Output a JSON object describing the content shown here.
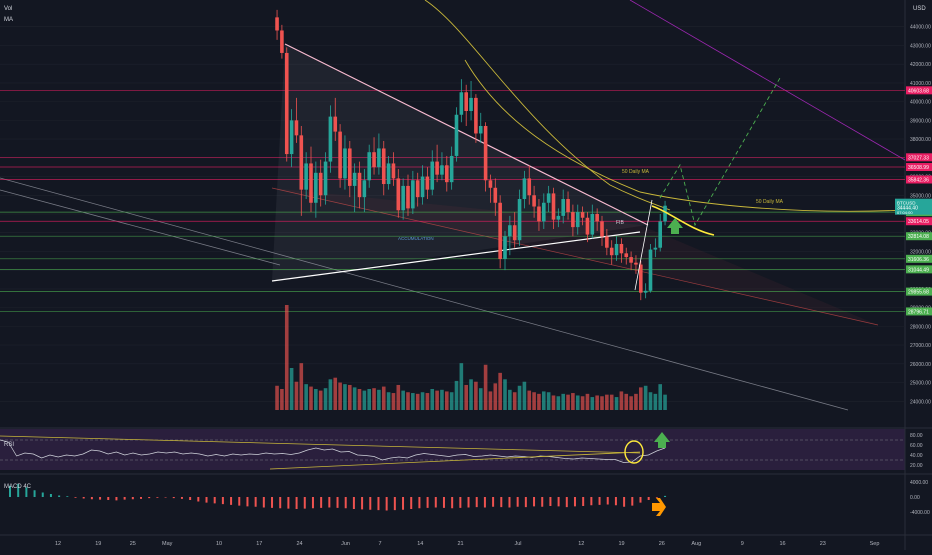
{
  "header": {
    "vol_label": "Vol",
    "ma_label": "MA",
    "currency": "USD"
  },
  "panels": {
    "rsi_label": "RSI",
    "macd_label": "MACD 4C"
  },
  "annotations": {
    "ma50_label": "50 Daily MA",
    "fib_label": "FIB",
    "accumulation_label": "ACCUMULATION"
  },
  "colors": {
    "background": "#131722",
    "bull": "#26a69a",
    "bear": "#ef5350",
    "support_line": "#4caf50",
    "resistance_line": "#e91e63",
    "ma_line": "#c8b73a",
    "rsi_line": "#d1d4dc",
    "rsi_band": "#2a1f3d",
    "green_arrow": "#4caf50",
    "orange_arrow": "#ff9800",
    "yellow_mark": "#ffeb3b"
  },
  "chart_data": {
    "type": "candlestick",
    "symbol": "BTCUSD",
    "ylim": [
      23000,
      45000
    ],
    "y_ticks": [
      24000,
      25000,
      26000,
      27000,
      28000,
      29000,
      30000,
      31000,
      32000,
      33000,
      34000,
      35000,
      36000,
      37000,
      38000,
      39000,
      40000,
      41000,
      42000,
      43000,
      44000
    ],
    "x_ticks": [
      {
        "label": "12",
        "day": 0
      },
      {
        "label": "19",
        "day": 7
      },
      {
        "label": "25",
        "day": 13
      },
      {
        "label": "May",
        "day": 19
      },
      {
        "label": "10",
        "day": 28
      },
      {
        "label": "17",
        "day": 35
      },
      {
        "label": "24",
        "day": 42
      },
      {
        "label": "Jun",
        "day": 50
      },
      {
        "label": "7",
        "day": 56
      },
      {
        "label": "14",
        "day": 63
      },
      {
        "label": "21",
        "day": 70
      },
      {
        "label": "Jul",
        "day": 80
      },
      {
        "label": "12",
        "day": 91
      },
      {
        "label": "19",
        "day": 98
      },
      {
        "label": "26",
        "day": 105
      },
      {
        "label": "Aug",
        "day": 111
      },
      {
        "label": "9",
        "day": 119
      },
      {
        "label": "16",
        "day": 126
      },
      {
        "label": "23",
        "day": 133
      },
      {
        "label": "Sep",
        "day": 142
      }
    ],
    "levels": [
      {
        "price": 40603.68,
        "label": "40603.68",
        "color": "#e91e63"
      },
      {
        "price": 37027.33,
        "label": "37027.33",
        "color": "#e91e63"
      },
      {
        "price": 36508.99,
        "label": "36508.99",
        "color": "#e91e63"
      },
      {
        "price": 35842.36,
        "label": "35842.36",
        "color": "#e91e63"
      },
      {
        "price": 34098.98,
        "label": "34098.98",
        "color": "#4caf50"
      },
      {
        "price": 33614.05,
        "label": "33614.05",
        "color": "#e91e63"
      },
      {
        "price": 32814.08,
        "label": "32814.08",
        "color": "#4caf50"
      },
      {
        "price": 31606.36,
        "label": "31606.36",
        "color": "#4caf50"
      },
      {
        "price": 31044.49,
        "label": "31044.49",
        "color": "#4caf50"
      },
      {
        "price": 29855.68,
        "label": "29855.68",
        "color": "#4caf50"
      },
      {
        "price": 28796.71,
        "label": "28796.71",
        "color": "#4caf50"
      }
    ],
    "current_price": {
      "price": 34444,
      "label": "34444.40",
      "name": "BTCUSD",
      "time": "07:04:00"
    },
    "candles": [
      [
        44500,
        43800,
        44900,
        43300
      ],
      [
        43800,
        42600,
        44100,
        42300
      ],
      [
        42600,
        37200,
        42900,
        36800
      ],
      [
        37200,
        39000,
        39600,
        36500
      ],
      [
        39000,
        38200,
        40200,
        37800
      ],
      [
        38200,
        35300,
        38700,
        33900
      ],
      [
        35300,
        36700,
        37300,
        34800
      ],
      [
        36700,
        34600,
        37600,
        34100
      ],
      [
        34600,
        36200,
        36800,
        33800
      ],
      [
        36200,
        35000,
        36900,
        34400
      ],
      [
        35000,
        36800,
        37300,
        34500
      ],
      [
        36800,
        39200,
        39800,
        36200
      ],
      [
        39200,
        38400,
        40200,
        37900
      ],
      [
        38400,
        35900,
        38800,
        35400
      ],
      [
        35900,
        37500,
        38200,
        35300
      ],
      [
        37500,
        35500,
        37900,
        34900
      ],
      [
        35500,
        36200,
        36700,
        34100
      ],
      [
        36200,
        34900,
        36800,
        34300
      ],
      [
        34900,
        35800,
        36400,
        34100
      ],
      [
        35800,
        37300,
        37700,
        35400
      ],
      [
        37300,
        36500,
        38100,
        36100
      ],
      [
        36500,
        37500,
        38300,
        36100
      ],
      [
        37500,
        35600,
        37900,
        35000
      ],
      [
        35600,
        36700,
        37100,
        35300
      ],
      [
        36700,
        35900,
        37300,
        35500
      ],
      [
        35900,
        34200,
        36400,
        33800
      ],
      [
        34200,
        35500,
        35900,
        33700
      ],
      [
        35500,
        34300,
        36100,
        33900
      ],
      [
        34300,
        35800,
        36300,
        34000
      ],
      [
        35800,
        34900,
        36200,
        34400
      ],
      [
        34900,
        36000,
        36600,
        34500
      ],
      [
        36000,
        35300,
        36500,
        34800
      ],
      [
        35300,
        36800,
        37400,
        35000
      ],
      [
        36800,
        36100,
        37700,
        35700
      ],
      [
        36100,
        36600,
        37300,
        35800
      ],
      [
        36600,
        35700,
        37100,
        35200
      ],
      [
        35700,
        37100,
        37600,
        35300
      ],
      [
        37100,
        39300,
        39700,
        36800
      ],
      [
        39300,
        40500,
        41200,
        38900
      ],
      [
        40500,
        39500,
        40900,
        38700
      ],
      [
        39500,
        40200,
        41100,
        39000
      ],
      [
        40200,
        38300,
        40400,
        37800
      ],
      [
        38300,
        38700,
        39400,
        37800
      ],
      [
        38700,
        35800,
        38900,
        35200
      ],
      [
        35800,
        35400,
        36100,
        34600
      ],
      [
        35400,
        34600,
        35900,
        33900
      ],
      [
        34600,
        31600,
        35000,
        31100
      ],
      [
        31600,
        32800,
        33100,
        31000
      ],
      [
        32800,
        33400,
        33900,
        31800
      ],
      [
        33400,
        32600,
        34100,
        32200
      ],
      [
        32600,
        34800,
        35300,
        32300
      ],
      [
        34800,
        35900,
        36300,
        34300
      ],
      [
        35900,
        35000,
        36600,
        34500
      ],
      [
        35000,
        34400,
        35500,
        33800
      ],
      [
        34400,
        33600,
        34800,
        33100
      ],
      [
        33600,
        34600,
        35100,
        33200
      ],
      [
        34600,
        35100,
        35500,
        34100
      ],
      [
        35100,
        33700,
        35400,
        33200
      ],
      [
        33700,
        33900,
        34300,
        33300
      ],
      [
        33900,
        34800,
        35300,
        33500
      ],
      [
        34800,
        34100,
        35200,
        33700
      ],
      [
        34100,
        33300,
        34500,
        32800
      ],
      [
        33300,
        34100,
        34500,
        32900
      ],
      [
        34100,
        33800,
        34400,
        33400
      ],
      [
        33800,
        32900,
        34100,
        32500
      ],
      [
        32900,
        34000,
        34500,
        32700
      ],
      [
        34000,
        33600,
        34300,
        33100
      ],
      [
        33600,
        32800,
        33900,
        32300
      ],
      [
        32800,
        32200,
        33200,
        31800
      ],
      [
        32200,
        31800,
        32600,
        31300
      ],
      [
        31800,
        32400,
        32800,
        31500
      ],
      [
        32400,
        31900,
        32700,
        31400
      ],
      [
        31900,
        31700,
        32200,
        31300
      ],
      [
        31700,
        31400,
        32000,
        31000
      ],
      [
        31400,
        31300,
        31800,
        30800
      ],
      [
        31300,
        29800,
        31500,
        29400
      ],
      [
        29800,
        29900,
        30300,
        29500
      ],
      [
        29900,
        32100,
        32400,
        29800
      ],
      [
        32100,
        32200,
        32700,
        31700
      ],
      [
        32200,
        33600,
        34000,
        32000
      ],
      [
        33600,
        34444,
        34700,
        33400
      ]
    ],
    "volume_max": 13000,
    "volumes": [
      3000,
      2600,
      13000,
      5200,
      3500,
      5800,
      3200,
      2900,
      2600,
      2400,
      2700,
      3800,
      4000,
      3400,
      3200,
      3100,
      2800,
      2600,
      2400,
      2600,
      2700,
      2500,
      2900,
      2200,
      2100,
      3100,
      2400,
      2200,
      2100,
      2000,
      2200,
      2100,
      2600,
      2400,
      2500,
      2300,
      2200,
      3600,
      5800,
      3100,
      3800,
      3500,
      2700,
      5600,
      2300,
      3300,
      4600,
      3800,
      2500,
      2200,
      3000,
      3500,
      2400,
      2200,
      2000,
      2300,
      2200,
      1800,
      1700,
      2000,
      1900,
      2100,
      1800,
      1700,
      2000,
      1600,
      1800,
      1700,
      1900,
      1900,
      1600,
      2300,
      2000,
      1700,
      2000,
      2800,
      3000,
      2200,
      2000,
      3200,
      1900
    ],
    "rsi": [
      70,
      66,
      38,
      44,
      42,
      34,
      40,
      36,
      40,
      38,
      42,
      50,
      48,
      42,
      46,
      40,
      44,
      40,
      42,
      46,
      44,
      46,
      42,
      44,
      42,
      38,
      41,
      38,
      42,
      40,
      42,
      41,
      44,
      42,
      43,
      41,
      44,
      50,
      54,
      50,
      52,
      46,
      47,
      40,
      39,
      37,
      30,
      34,
      36,
      34,
      40,
      43,
      41,
      39,
      37,
      40,
      41,
      37,
      38,
      40,
      38,
      36,
      38,
      37,
      35,
      38,
      37,
      35,
      33,
      32,
      34,
      33,
      32,
      31,
      31,
      25,
      26,
      38,
      40,
      48,
      54
    ],
    "rsi_ticks": [
      20,
      40,
      60,
      80
    ],
    "macd_ticks": [
      4000,
      0,
      -4000
    ],
    "macd_hist": [
      3000,
      3500,
      2600,
      1800,
      1200,
      800,
      400,
      200,
      -200,
      -400,
      -600,
      -700,
      -800,
      -900,
      -700,
      -600,
      -500,
      -300,
      -200,
      -100,
      -300,
      -500,
      -800,
      -1200,
      -1500,
      -1700,
      -1900,
      -2100,
      -2300,
      -2500,
      -2600,
      -2800,
      -2900,
      -3000,
      -3100,
      -3200,
      -3100,
      -3000,
      -2900,
      -2800,
      -2900,
      -3000,
      -3200,
      -3300,
      -3400,
      -3500,
      -3600,
      -3500,
      -3400,
      -3200,
      -3000,
      -2900,
      -2800,
      -2900,
      -3000,
      -2900,
      -2800,
      -2700,
      -2800,
      -2600,
      -2700,
      -2800,
      -2600,
      -2700,
      -2500,
      -2600,
      -2400,
      -2500,
      -2700,
      -2500,
      -2400,
      -2200,
      -2100,
      -2000,
      -2200,
      -2600,
      -2300,
      -1500,
      -800,
      -200,
      300
    ]
  }
}
